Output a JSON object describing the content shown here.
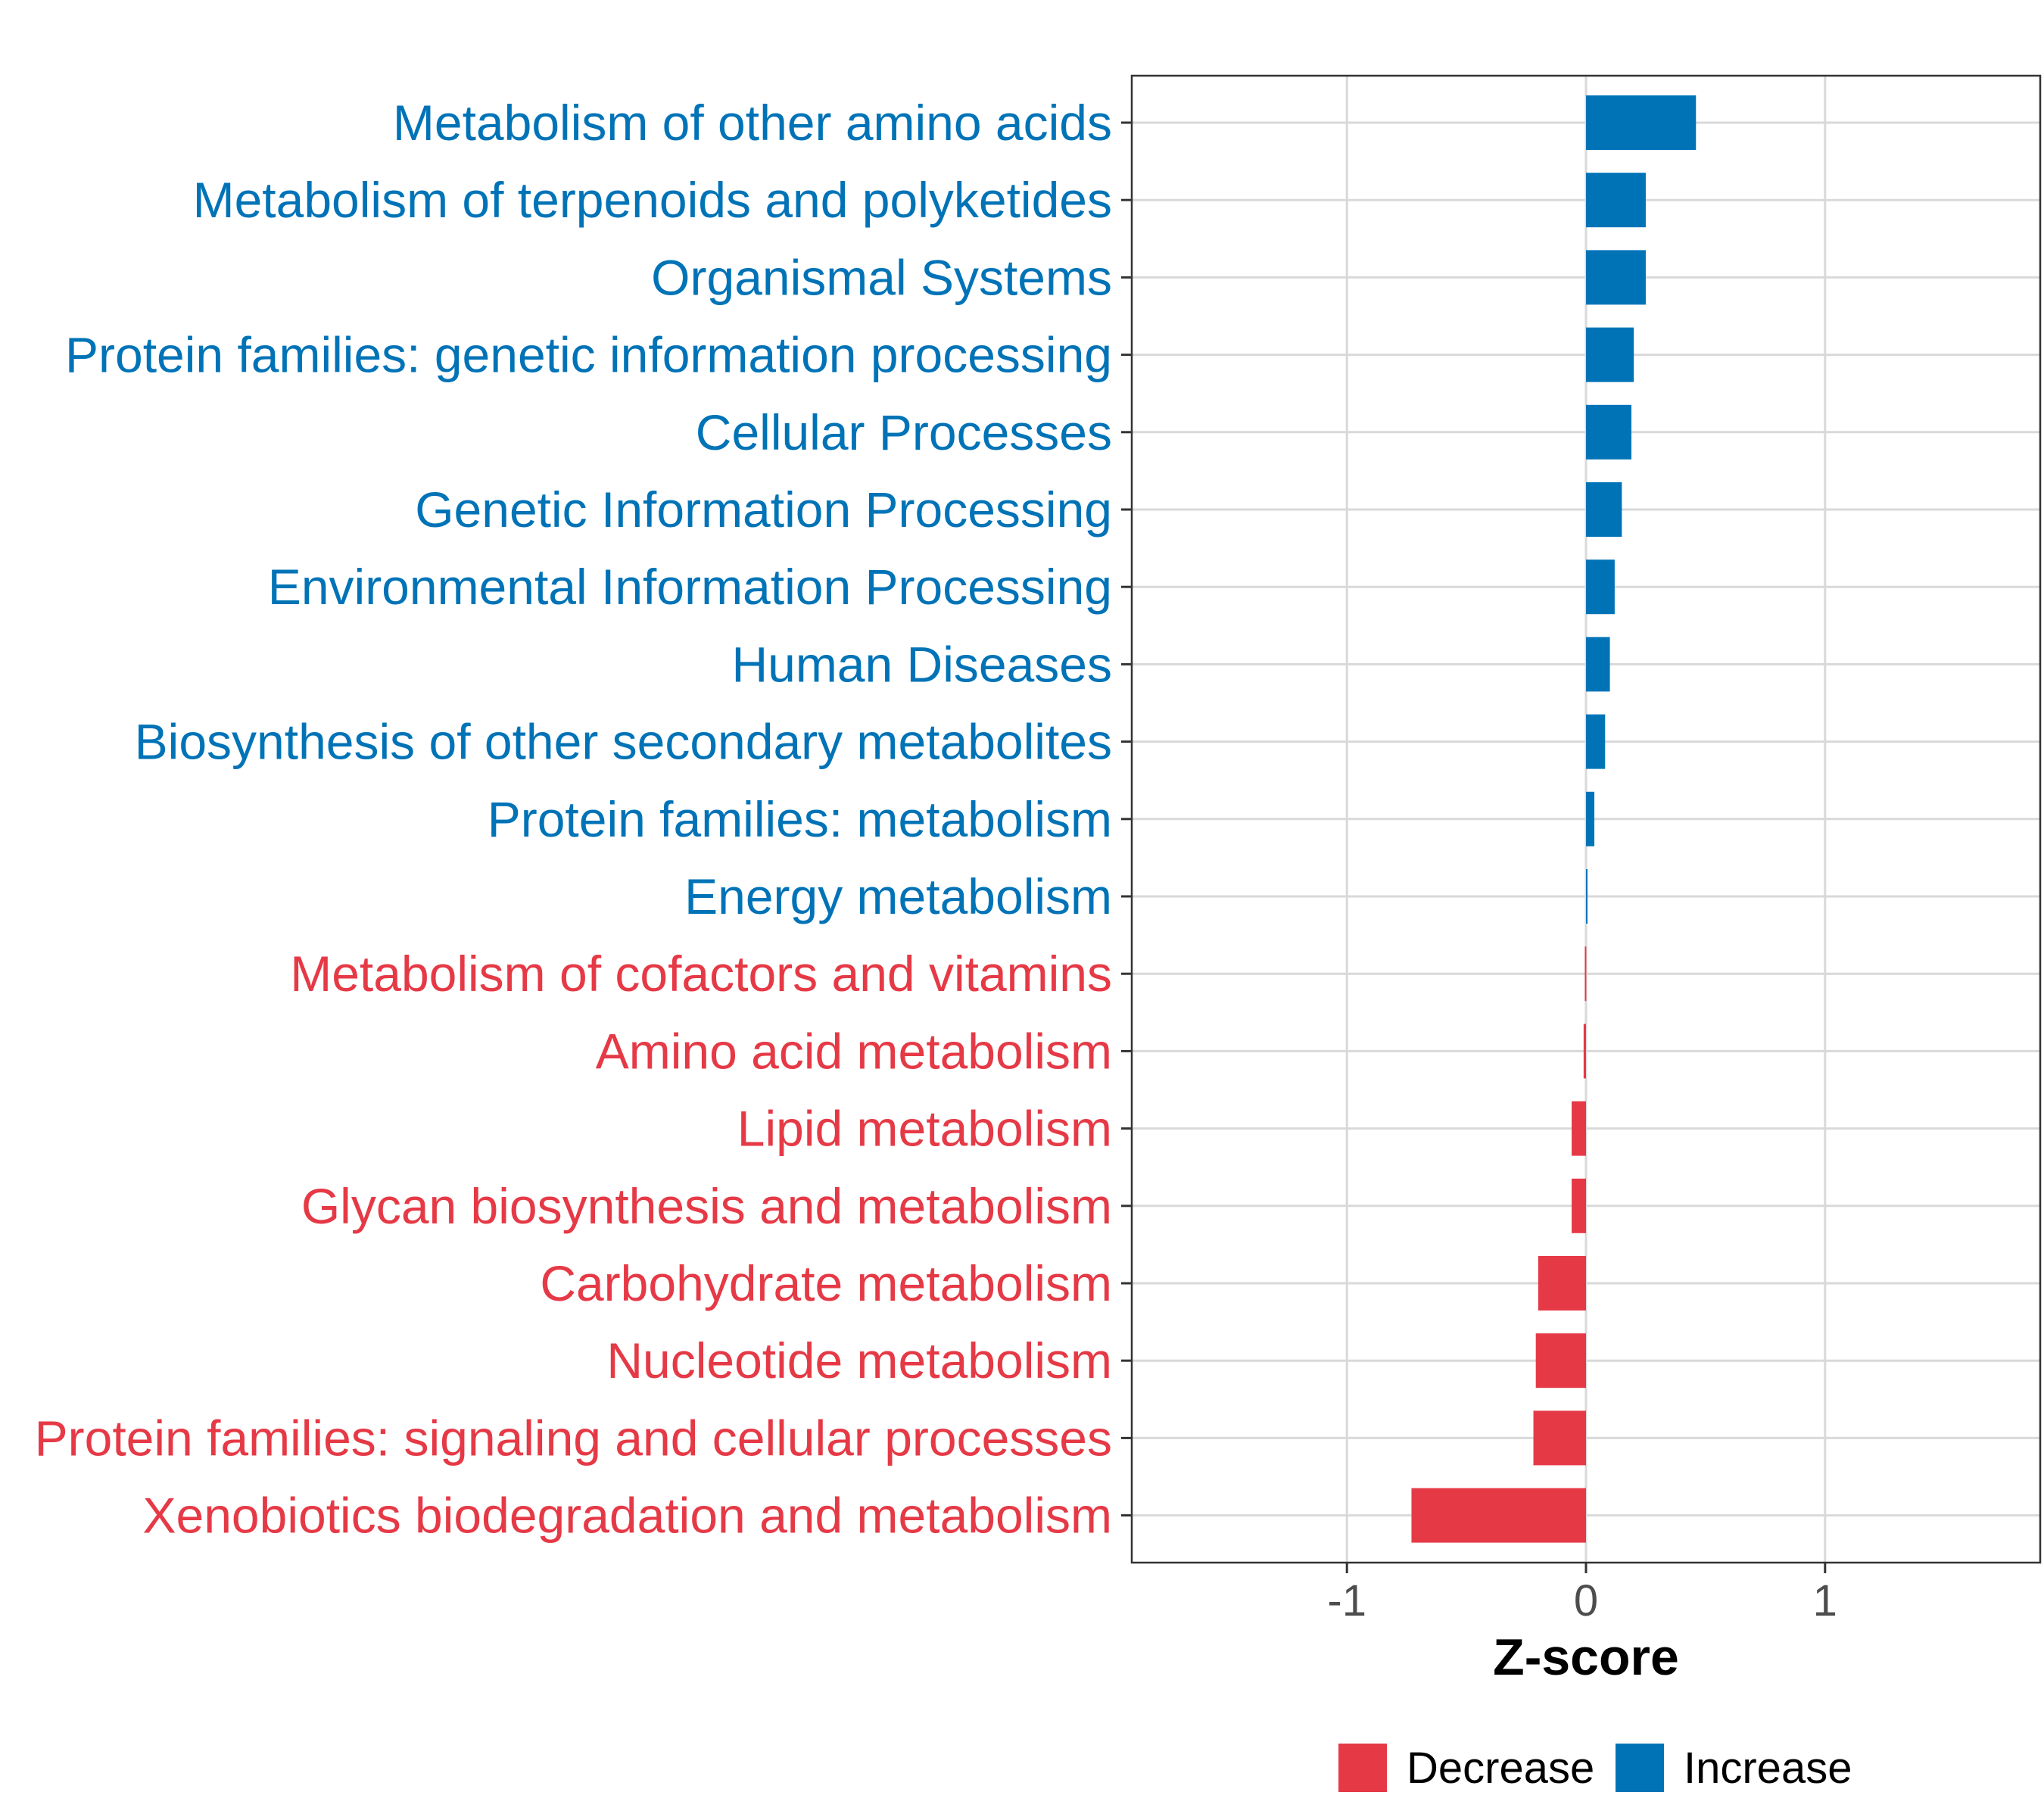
{
  "chart_data": {
    "type": "bar",
    "orientation": "horizontal",
    "title": "",
    "xlabel": "Z-score",
    "ylabel": "",
    "xlim": [
      -1.9,
      1.9
    ],
    "xticks": [
      -1,
      0,
      1
    ],
    "xtick_labels": [
      "-1",
      "0",
      "1"
    ],
    "grid": true,
    "legend_position": "bottom",
    "colors": {
      "Decrease": "#e63946",
      "Increase": "#0073b7"
    },
    "categories": [
      "Metabolism of other amino acids",
      "Metabolism of terpenoids and polyketides",
      "Organismal Systems",
      "Protein families: genetic information processing",
      "Cellular Processes",
      "Genetic Information Processing",
      "Environmental Information Processing",
      "Human Diseases",
      "Biosynthesis of other secondary metabolites",
      "Protein families: metabolism",
      "Energy metabolism",
      "Metabolism of cofactors and vitamins",
      "Amino acid metabolism",
      "Lipid metabolism",
      "Glycan biosynthesis and metabolism",
      "Carbohydrate metabolism",
      "Nucleotide metabolism",
      "Protein families: signaling and cellular processes",
      "Xenobiotics biodegradation and metabolism"
    ],
    "values": [
      0.46,
      0.25,
      0.25,
      0.2,
      0.19,
      0.15,
      0.12,
      0.1,
      0.08,
      0.035,
      0.005,
      -0.005,
      -0.01,
      -0.06,
      -0.06,
      -0.2,
      -0.21,
      -0.22,
      -0.73
    ],
    "groups": [
      "Increase",
      "Increase",
      "Increase",
      "Increase",
      "Increase",
      "Increase",
      "Increase",
      "Increase",
      "Increase",
      "Increase",
      "Increase",
      "Decrease",
      "Decrease",
      "Decrease",
      "Decrease",
      "Decrease",
      "Decrease",
      "Decrease",
      "Decrease"
    ],
    "legend": [
      "Decrease",
      "Increase"
    ]
  }
}
